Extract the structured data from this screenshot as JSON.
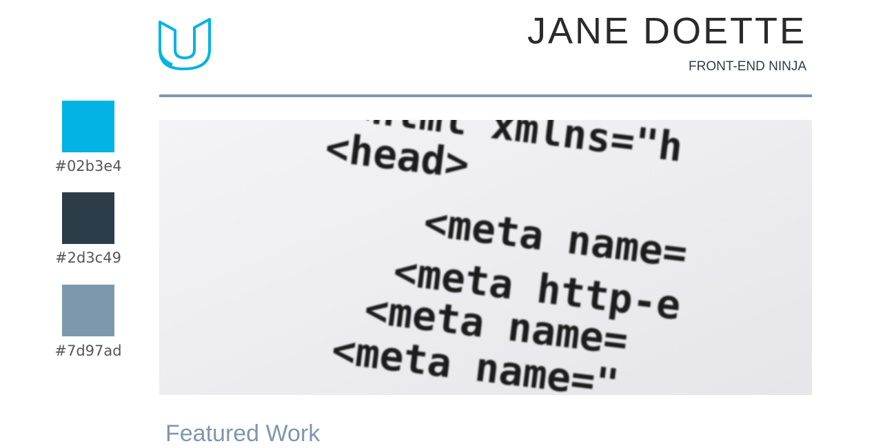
{
  "header": {
    "name": "JANE DOETTE",
    "role": "FRONT-END NINJA"
  },
  "swatches": [
    "#02b3e4",
    "#2d3c49",
    "#7d97ad"
  ],
  "hero_image": {
    "lines": [
      "<html xmlns=\"h",
      "<head>",
      "<meta name=",
      "<meta http-e",
      "<meta name=",
      "<meta name=\""
    ]
  },
  "section": {
    "title": "Featured Work"
  }
}
